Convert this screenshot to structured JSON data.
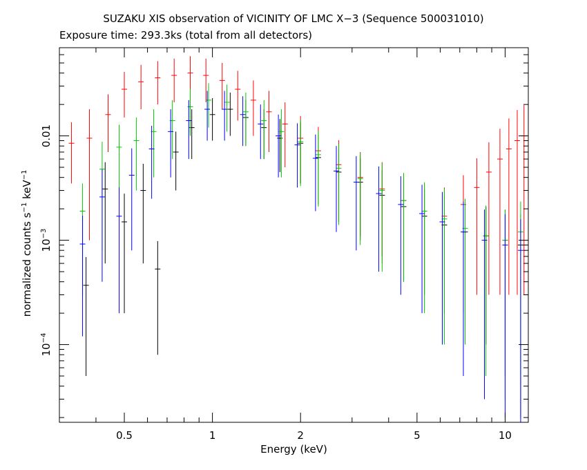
{
  "chart_data": {
    "type": "scatter",
    "title": "SUZAKU XIS observation of VICINITY OF LMC X−3 (Sequence 500031010)",
    "subtitle": "Exposure time: 293.3ks (total from all detectors)",
    "xlabel": "Energy (keV)",
    "ylabel": "normalized counts s",
    "ylabel_sup1": "−1",
    "ylabel_mid": " keV",
    "ylabel_sup2": "−1",
    "x_scale": "log",
    "y_scale": "log",
    "xlim": [
      0.3,
      12.0
    ],
    "ylim": [
      1.8e-05,
      0.07
    ],
    "x_ticks": [
      {
        "value": 0.5,
        "label": "0.5"
      },
      {
        "value": 1,
        "label": "1"
      },
      {
        "value": 2,
        "label": "2"
      },
      {
        "value": 5,
        "label": "5"
      },
      {
        "value": 10,
        "label": "10"
      }
    ],
    "y_ticks": [
      {
        "value": 0.01,
        "label": "0.01",
        "exp": ""
      },
      {
        "value": 0.001,
        "label": "10",
        "exp": "−3"
      },
      {
        "value": 0.0001,
        "label": "10",
        "exp": "−4"
      }
    ],
    "grid": false,
    "legend": "none",
    "colors": {
      "xis0": "#000000",
      "xis1": "#ff0000",
      "xis2": "#00cc00",
      "xis3": "#0000ff"
    },
    "series": [
      {
        "color": "#000000",
        "points": [
          {
            "x": 0.37,
            "y": 0.00037,
            "err": 0.00032
          },
          {
            "x": 0.43,
            "y": 0.0031,
            "err": 0.0025
          },
          {
            "x": 0.5,
            "y": 0.0015,
            "err": 0.0013
          },
          {
            "x": 0.58,
            "y": 0.003,
            "err": 0.0024
          },
          {
            "x": 0.65,
            "y": 0.00053,
            "err": 0.00045
          },
          {
            "x": 0.75,
            "y": 0.007,
            "err": 0.004
          },
          {
            "x": 0.85,
            "y": 0.012,
            "err": 0.006
          },
          {
            "x": 1.0,
            "y": 0.016,
            "err": 0.007
          },
          {
            "x": 1.15,
            "y": 0.018,
            "err": 0.008
          },
          {
            "x": 1.3,
            "y": 0.015,
            "err": 0.007
          },
          {
            "x": 1.5,
            "y": 0.012,
            "err": 0.006
          },
          {
            "x": 1.7,
            "y": 0.0095,
            "err": 0.005
          },
          {
            "x": 2.0,
            "y": 0.0085,
            "err": 0.005
          },
          {
            "x": 2.3,
            "y": 0.0062,
            "err": 0.004
          },
          {
            "x": 2.7,
            "y": 0.0045,
            "err": 0.003
          },
          {
            "x": 3.2,
            "y": 0.0036,
            "err": 0.0025
          },
          {
            "x": 3.8,
            "y": 0.0027,
            "err": 0.002
          },
          {
            "x": 4.5,
            "y": 0.0021,
            "err": 0.0017
          },
          {
            "x": 5.3,
            "y": 0.0017,
            "err": 0.0014
          },
          {
            "x": 6.2,
            "y": 0.0014,
            "err": 0.0012
          },
          {
            "x": 7.3,
            "y": 0.0012,
            "err": 0.00105
          },
          {
            "x": 8.6,
            "y": 0.0011,
            "err": 0.001
          },
          {
            "x": 10.0,
            "y": 0.001,
            "err": 0.00095
          },
          {
            "x": 11.3,
            "y": 0.0009,
            "err": 0.00088
          }
        ]
      },
      {
        "color": "#ff0000",
        "points": [
          {
            "x": 0.33,
            "y": 0.0085,
            "err": 0.005
          },
          {
            "x": 0.38,
            "y": 0.0095,
            "err": 0.0085
          },
          {
            "x": 0.44,
            "y": 0.016,
            "err": 0.009
          },
          {
            "x": 0.5,
            "y": 0.028,
            "err": 0.013
          },
          {
            "x": 0.57,
            "y": 0.033,
            "err": 0.015
          },
          {
            "x": 0.65,
            "y": 0.036,
            "err": 0.016
          },
          {
            "x": 0.74,
            "y": 0.038,
            "err": 0.017
          },
          {
            "x": 0.84,
            "y": 0.04,
            "err": 0.018
          },
          {
            "x": 0.95,
            "y": 0.038,
            "err": 0.017
          },
          {
            "x": 1.08,
            "y": 0.034,
            "err": 0.016
          },
          {
            "x": 1.22,
            "y": 0.028,
            "err": 0.014
          },
          {
            "x": 1.38,
            "y": 0.022,
            "err": 0.012
          },
          {
            "x": 1.56,
            "y": 0.017,
            "err": 0.01
          },
          {
            "x": 1.77,
            "y": 0.013,
            "err": 0.008
          },
          {
            "x": 2.0,
            "y": 0.0095,
            "err": 0.006
          },
          {
            "x": 2.3,
            "y": 0.0072,
            "err": 0.005
          },
          {
            "x": 2.7,
            "y": 0.0053,
            "err": 0.0038
          },
          {
            "x": 3.2,
            "y": 0.004,
            "err": 0.003
          },
          {
            "x": 3.8,
            "y": 0.0031,
            "err": 0.0025
          },
          {
            "x": 4.5,
            "y": 0.0024,
            "err": 0.002
          },
          {
            "x": 5.3,
            "y": 0.0019,
            "err": 0.0016
          },
          {
            "x": 6.2,
            "y": 0.0017,
            "err": 0.0015
          },
          {
            "x": 7.2,
            "y": 0.0022,
            "err": 0.002
          },
          {
            "x": 8.0,
            "y": 0.0032,
            "err": 0.0029
          },
          {
            "x": 8.8,
            "y": 0.0045,
            "err": 0.0042
          },
          {
            "x": 9.6,
            "y": 0.006,
            "err": 0.0057
          },
          {
            "x": 10.3,
            "y": 0.0075,
            "err": 0.0072
          },
          {
            "x": 11.0,
            "y": 0.009,
            "err": 0.0087
          },
          {
            "x": 11.6,
            "y": 0.01,
            "err": 0.0097
          }
        ]
      },
      {
        "color": "#00cc00",
        "points": [
          {
            "x": 0.36,
            "y": 0.0019,
            "err": 0.0016
          },
          {
            "x": 0.42,
            "y": 0.0048,
            "err": 0.004
          },
          {
            "x": 0.48,
            "y": 0.0078,
            "err": 0.005
          },
          {
            "x": 0.55,
            "y": 0.009,
            "err": 0.006
          },
          {
            "x": 0.63,
            "y": 0.011,
            "err": 0.007
          },
          {
            "x": 0.73,
            "y": 0.014,
            "err": 0.008
          },
          {
            "x": 0.84,
            "y": 0.019,
            "err": 0.009
          },
          {
            "x": 0.97,
            "y": 0.022,
            "err": 0.01
          },
          {
            "x": 1.12,
            "y": 0.021,
            "err": 0.01
          },
          {
            "x": 1.3,
            "y": 0.017,
            "err": 0.009
          },
          {
            "x": 1.5,
            "y": 0.014,
            "err": 0.008
          },
          {
            "x": 1.72,
            "y": 0.011,
            "err": 0.007
          },
          {
            "x": 2.0,
            "y": 0.0088,
            "err": 0.0055
          },
          {
            "x": 2.3,
            "y": 0.0066,
            "err": 0.0045
          },
          {
            "x": 2.7,
            "y": 0.0049,
            "err": 0.0035
          },
          {
            "x": 3.2,
            "y": 0.0039,
            "err": 0.003
          },
          {
            "x": 3.8,
            "y": 0.003,
            "err": 0.0025
          },
          {
            "x": 4.5,
            "y": 0.0024,
            "err": 0.002
          },
          {
            "x": 5.3,
            "y": 0.0019,
            "err": 0.0017
          },
          {
            "x": 6.2,
            "y": 0.0016,
            "err": 0.0015
          },
          {
            "x": 7.3,
            "y": 0.0013,
            "err": 0.0012
          },
          {
            "x": 8.6,
            "y": 0.0011,
            "err": 0.00105
          },
          {
            "x": 10.0,
            "y": 0.001,
            "err": 0.00097
          },
          {
            "x": 11.3,
            "y": 0.0012,
            "err": 0.00115
          }
        ]
      },
      {
        "color": "#0000ff",
        "points": [
          {
            "x": 0.36,
            "y": 0.00092,
            "err": 0.0008
          },
          {
            "x": 0.42,
            "y": 0.0026,
            "err": 0.0022
          },
          {
            "x": 0.48,
            "y": 0.0017,
            "err": 0.0015
          },
          {
            "x": 0.53,
            "y": 0.0042,
            "err": 0.0034
          },
          {
            "x": 0.62,
            "y": 0.0075,
            "err": 0.005
          },
          {
            "x": 0.72,
            "y": 0.011,
            "err": 0.007
          },
          {
            "x": 0.83,
            "y": 0.014,
            "err": 0.008
          },
          {
            "x": 0.96,
            "y": 0.018,
            "err": 0.009
          },
          {
            "x": 1.1,
            "y": 0.018,
            "err": 0.009
          },
          {
            "x": 1.27,
            "y": 0.016,
            "err": 0.008
          },
          {
            "x": 1.46,
            "y": 0.013,
            "err": 0.007
          },
          {
            "x": 1.68,
            "y": 0.01,
            "err": 0.006
          },
          {
            "x": 1.95,
            "y": 0.0082,
            "err": 0.005
          },
          {
            "x": 2.25,
            "y": 0.0061,
            "err": 0.0042
          },
          {
            "x": 2.65,
            "y": 0.0046,
            "err": 0.0034
          },
          {
            "x": 3.1,
            "y": 0.0036,
            "err": 0.0028
          },
          {
            "x": 3.7,
            "y": 0.0028,
            "err": 0.0023
          },
          {
            "x": 4.4,
            "y": 0.0022,
            "err": 0.0019
          },
          {
            "x": 5.2,
            "y": 0.0018,
            "err": 0.0016
          },
          {
            "x": 6.1,
            "y": 0.0015,
            "err": 0.0014
          },
          {
            "x": 7.2,
            "y": 0.0012,
            "err": 0.00115
          },
          {
            "x": 8.5,
            "y": 0.001,
            "err": 0.00097
          },
          {
            "x": 10.0,
            "y": 0.0009,
            "err": 0.00088
          },
          {
            "x": 11.3,
            "y": 0.0008,
            "err": 0.00079
          }
        ]
      }
    ]
  }
}
